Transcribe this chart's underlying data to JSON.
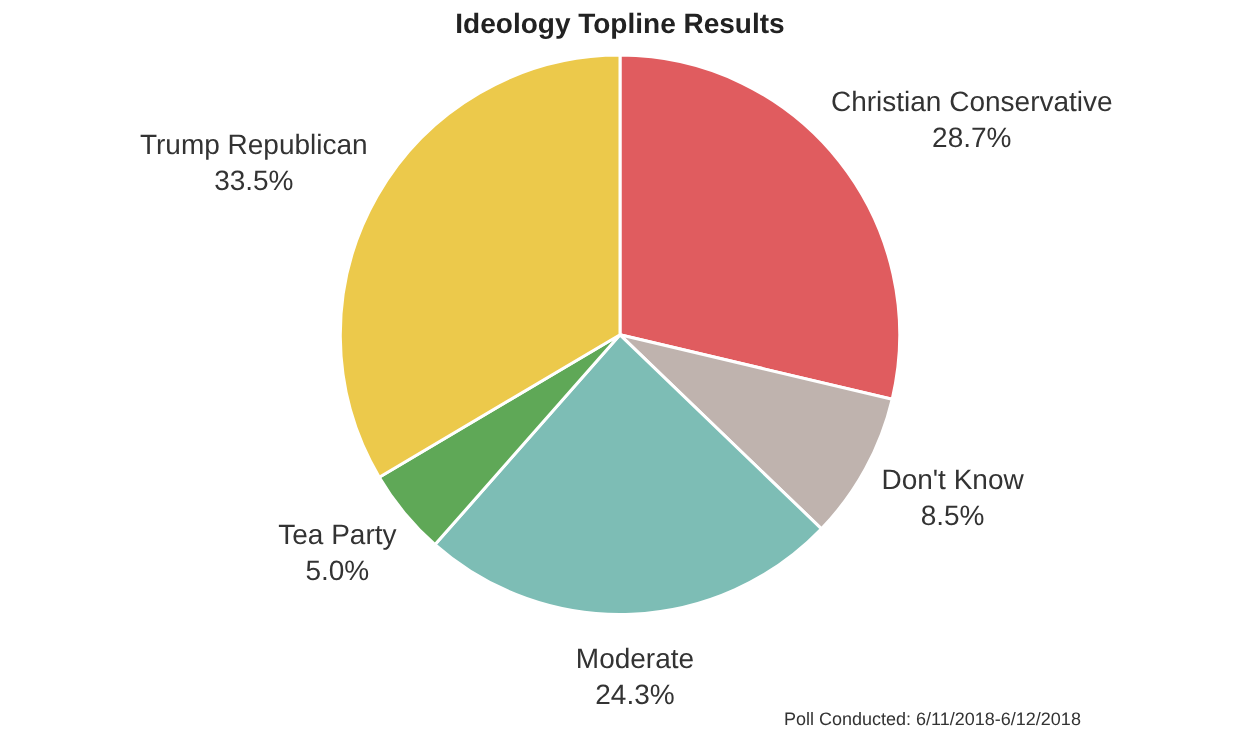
{
  "chart_data": {
    "type": "pie",
    "title": "Ideology Topline Results",
    "categories": [
      "Christian Conservative",
      "Don't Know",
      "Moderate",
      "Tea Party",
      "Trump Republican"
    ],
    "values": [
      28.7,
      8.5,
      24.3,
      5.0,
      33.5
    ],
    "value_labels": [
      "28.7%",
      "8.5%",
      "24.3%",
      "5.0%",
      "33.5%"
    ],
    "colors": [
      "#e05c5f",
      "#bfb3ae",
      "#7dbdb5",
      "#5fa857",
      "#ecc94b"
    ],
    "legend": false,
    "annotations": [
      "Poll Conducted: 6/11/2018-6/12/2018"
    ]
  }
}
